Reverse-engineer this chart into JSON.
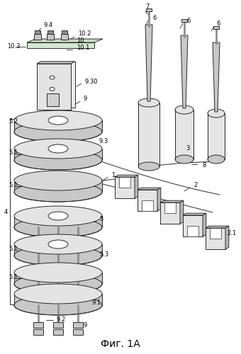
{
  "title": "Фиг. 1А",
  "bg_color": "#ffffff",
  "line_color": "#2a2a2a",
  "dark_gray": "#909090",
  "mid_gray": "#c8c8c8",
  "light_gray": "#e4e4e4"
}
